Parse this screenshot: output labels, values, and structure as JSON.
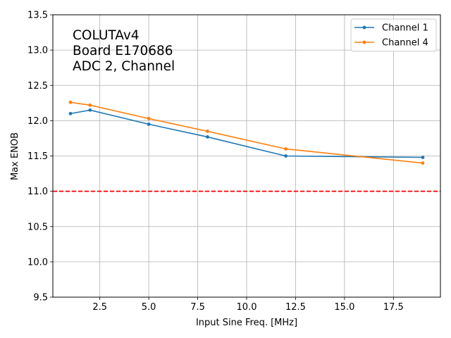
{
  "chart_data": {
    "type": "line",
    "xlabel": "Input Sine Freq. [MHz]",
    "ylabel": "Max ENOB",
    "xlim": [
      0.1,
      19.9
    ],
    "ylim": [
      9.5,
      13.5
    ],
    "x_ticks": [
      2.5,
      5.0,
      7.5,
      10.0,
      12.5,
      15.0,
      17.5
    ],
    "x_tick_labels": [
      "2.5",
      "5.0",
      "7.5",
      "10.0",
      "12.5",
      "15.0",
      "17.5"
    ],
    "y_ticks": [
      9.5,
      10.0,
      10.5,
      11.0,
      11.5,
      12.0,
      12.5,
      13.0,
      13.5
    ],
    "y_tick_labels": [
      "9.5",
      "10.0",
      "10.5",
      "11.0",
      "11.5",
      "12.0",
      "12.5",
      "13.0",
      "13.5"
    ],
    "grid": true,
    "annotation": [
      "COLUTAv4",
      "Board E170686",
      "ADC 2, Channel"
    ],
    "legend_position": "top-right",
    "series": [
      {
        "name": "Channel 1",
        "color": "#1f77b4",
        "x": [
          1,
          2,
          5,
          8,
          12,
          19
        ],
        "y": [
          12.1,
          12.15,
          11.95,
          11.77,
          11.5,
          11.48
        ]
      },
      {
        "name": "Channel 4",
        "color": "#ff7f0e",
        "x": [
          1,
          2,
          5,
          8,
          12,
          19
        ],
        "y": [
          12.26,
          12.22,
          12.03,
          11.85,
          11.6,
          11.4
        ]
      }
    ],
    "reference_line": {
      "y": 11.0,
      "color": "#ff0000",
      "style": "dashed"
    }
  }
}
